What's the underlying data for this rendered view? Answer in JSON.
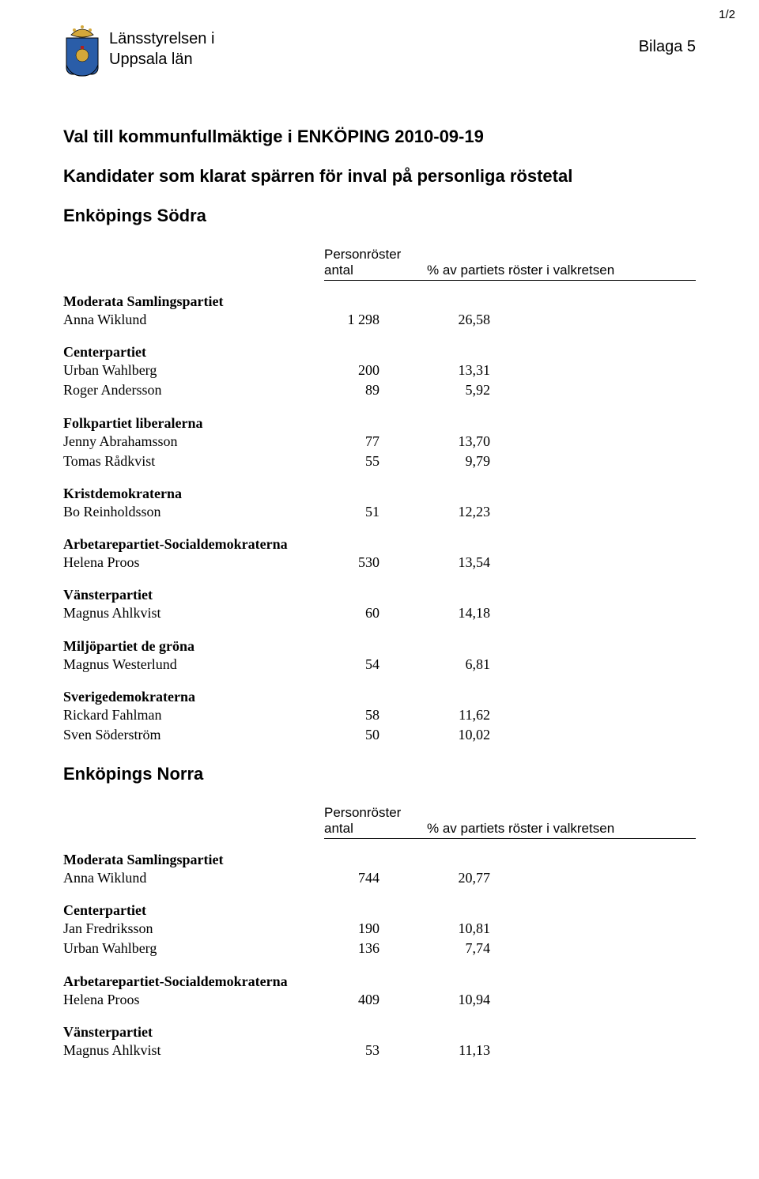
{
  "page_number": "1/2",
  "bilaga": "Bilaga 5",
  "org_line1": "Länsstyrelsen i",
  "org_line2": "Uppsala län",
  "title": "Val till kommunfullmäktige i ENKÖPING 2010-09-19",
  "subtitle": "Kandidater som klarat spärren för inval på personliga röstetal",
  "colhead_top": "Personröster",
  "colhead_c1": "antal",
  "colhead_c2": "% av partiets röster i valkretsen",
  "districts": [
    {
      "name": "Enköpings Södra",
      "sections": [
        {
          "party": "Moderata Samlingspartiet",
          "rows": [
            {
              "name": "Anna Wiklund",
              "c1": "1 298",
              "c2": "26,58"
            }
          ]
        },
        {
          "party": "Centerpartiet",
          "rows": [
            {
              "name": "Urban Wahlberg",
              "c1": "200",
              "c2": "13,31"
            },
            {
              "name": "Roger Andersson",
              "c1": "89",
              "c2": "5,92"
            }
          ]
        },
        {
          "party": "Folkpartiet liberalerna",
          "rows": [
            {
              "name": "Jenny Abrahamsson",
              "c1": "77",
              "c2": "13,70"
            },
            {
              "name": "Tomas Rådkvist",
              "c1": "55",
              "c2": "9,79"
            }
          ]
        },
        {
          "party": "Kristdemokraterna",
          "rows": [
            {
              "name": "Bo Reinholdsson",
              "c1": "51",
              "c2": "12,23"
            }
          ]
        },
        {
          "party": "Arbetarepartiet-Socialdemokraterna",
          "rows": [
            {
              "name": "Helena Proos",
              "c1": "530",
              "c2": "13,54"
            }
          ]
        },
        {
          "party": "Vänsterpartiet",
          "rows": [
            {
              "name": "Magnus Ahlkvist",
              "c1": "60",
              "c2": "14,18"
            }
          ]
        },
        {
          "party": "Miljöpartiet de gröna",
          "rows": [
            {
              "name": "Magnus Westerlund",
              "c1": "54",
              "c2": "6,81"
            }
          ]
        },
        {
          "party": "Sverigedemokraterna",
          "rows": [
            {
              "name": "Rickard Fahlman",
              "c1": "58",
              "c2": "11,62"
            },
            {
              "name": "Sven Söderström",
              "c1": "50",
              "c2": "10,02"
            }
          ]
        }
      ]
    },
    {
      "name": "Enköpings Norra",
      "sections": [
        {
          "party": "Moderata Samlingspartiet",
          "rows": [
            {
              "name": "Anna Wiklund",
              "c1": "744",
              "c2": "20,77"
            }
          ]
        },
        {
          "party": "Centerpartiet",
          "rows": [
            {
              "name": "Jan Fredriksson",
              "c1": "190",
              "c2": "10,81"
            },
            {
              "name": "Urban Wahlberg",
              "c1": "136",
              "c2": "7,74"
            }
          ]
        },
        {
          "party": "Arbetarepartiet-Socialdemokraterna",
          "rows": [
            {
              "name": "Helena Proos",
              "c1": "409",
              "c2": "10,94"
            }
          ]
        },
        {
          "party": "Vänsterpartiet",
          "rows": [
            {
              "name": "Magnus Ahlkvist",
              "c1": "53",
              "c2": "11,13"
            }
          ]
        }
      ]
    }
  ],
  "crest_colors": {
    "crown_gold": "#d4a83a",
    "blue": "#2a5da8",
    "white": "#ffffff",
    "black": "#000000",
    "red": "#b02020"
  }
}
